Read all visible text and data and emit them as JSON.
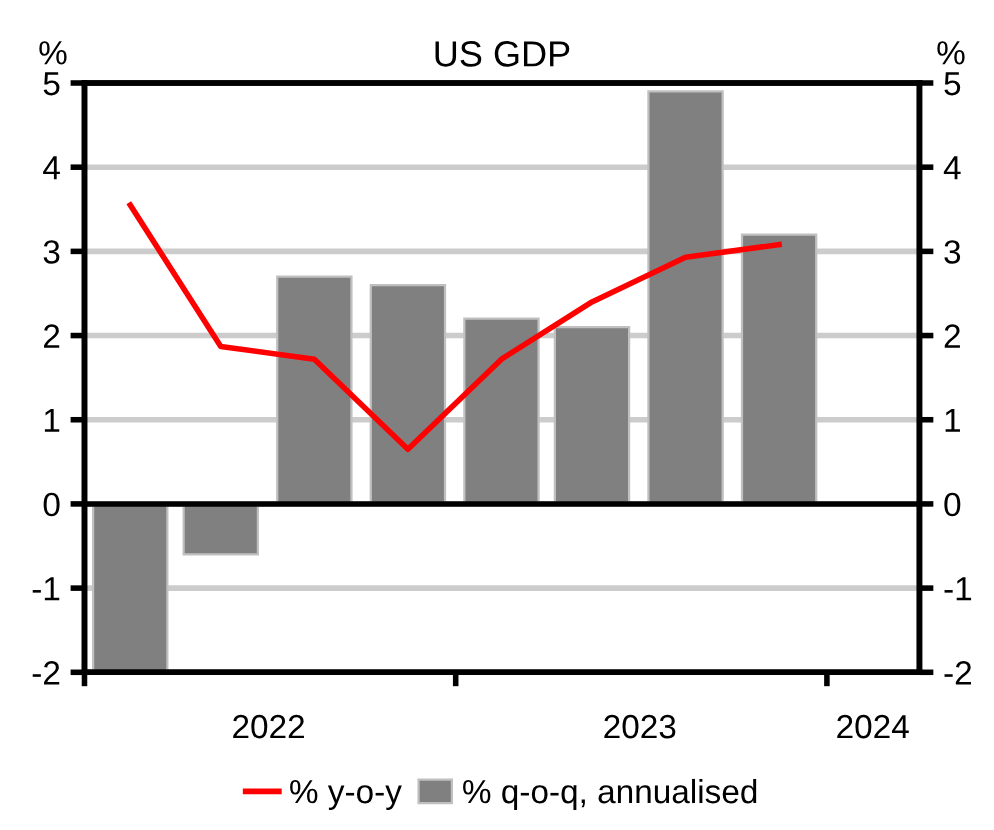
{
  "chart_data": {
    "type": "bar",
    "title": "US GDP",
    "ylabel": "%",
    "y2label": "%",
    "x": [
      "2022-02-15",
      "2022-05-15",
      "2022-08-15",
      "2022-11-15",
      "2023-02-15",
      "2023-05-15",
      "2023-08-15",
      "2023-11-15"
    ],
    "series": [
      {
        "name": "% y-o-y",
        "type": "line",
        "color": "#ff0000",
        "values": [
          3.55,
          1.87,
          1.72,
          0.65,
          1.72,
          2.4,
          2.93,
          3.08
        ]
      },
      {
        "name": "% q-o-q, annualised",
        "color": "#808080",
        "values": [
          -2.0,
          -0.6,
          2.7,
          2.6,
          2.2,
          2.1,
          4.9,
          3.2
        ]
      }
    ],
    "xlim": [
      "2022-01-01",
      "2024-04-01"
    ],
    "xticks": [
      {
        "value": "2022-01-01",
        "label": null
      },
      {
        "value": "2022-07-01",
        "label": "2022"
      },
      {
        "value": "2023-01-01",
        "label": null
      },
      {
        "value": "2023-07-01",
        "label": "2023"
      },
      {
        "value": "2024-01-01",
        "label": null
      },
      {
        "value": "2024-02-15",
        "label": "2024"
      }
    ],
    "ylim": [
      -2,
      5
    ],
    "yticks": [
      -2,
      -1,
      0,
      1,
      2,
      3,
      4,
      5
    ],
    "y2lim": [
      -2,
      5
    ],
    "y2ticks": [
      -2,
      -1,
      0,
      1,
      2,
      3,
      4,
      5
    ],
    "ref_lines": [
      {
        "axis": "y",
        "value": 0,
        "color": "#000000"
      }
    ],
    "grid": "y",
    "legend": "bottom",
    "marker": "none",
    "line_style": "solid"
  }
}
